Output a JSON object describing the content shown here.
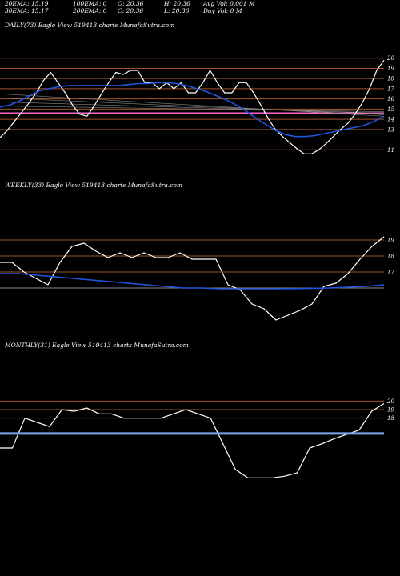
{
  "header": {
    "ema20": "20EMA: 15.19",
    "ema100": "100EMA: 0",
    "open": "O: 20.36",
    "high": "H: 20.36",
    "avgvol": "Avg Vol: 0.001 M",
    "ema30": "30EMA: 15.17",
    "ema200": "200EMA: 0",
    "close": "C: 20.36",
    "low": "L: 20.36",
    "dayvol": "Day Vol: 0  M"
  },
  "colors": {
    "price": "#ffffff",
    "ema": "#2255dd",
    "orange": "#a0522d",
    "pink": "#ff66cc",
    "gray": "#888888",
    "flat": "#7aa6e6"
  },
  "chart_data": [
    {
      "title": "DAILY(73) Eagle  View  519413 charts MunafaSutra.com",
      "type": "line",
      "ylim": [
        10,
        21
      ],
      "y_ticks": [
        20,
        19,
        18,
        17,
        16,
        15,
        14,
        13,
        11
      ],
      "series": [
        {
          "values": [
            12.2,
            12.9,
            13.8,
            14.7,
            15.6,
            16.6,
            17.8,
            18.6,
            17.6,
            16.6,
            15.4,
            14.5,
            14.3,
            15.3,
            16.5,
            17.6,
            18.6,
            18.4,
            18.8,
            18.8,
            17.6,
            17.6,
            17.0,
            17.6,
            17.0,
            17.6,
            16.6,
            16.6,
            17.6,
            18.8,
            17.6,
            16.6,
            16.6,
            17.6,
            17.6,
            16.6,
            15.4,
            14.1,
            13.0,
            12.3,
            11.7,
            11.1,
            10.6,
            10.6,
            11.0,
            11.6,
            12.3,
            13.0,
            13.6,
            14.5,
            15.6,
            17.0,
            18.8,
            19.8
          ]
        },
        {
          "values": [
            15.2,
            15.4,
            15.8,
            16.3,
            16.8,
            17.0,
            17.2,
            17.3,
            17.3,
            17.3,
            17.3,
            17.3,
            17.3,
            17.4,
            17.5,
            17.5,
            17.6,
            17.6,
            17.5,
            17.3,
            17.0,
            16.7,
            16.3,
            15.9,
            15.4,
            14.8,
            14.1,
            13.5,
            12.9,
            12.5,
            12.3,
            12.3,
            12.4,
            12.6,
            12.8,
            13.0,
            13.2,
            13.4,
            13.8,
            14.3
          ]
        }
      ]
    },
    {
      "title": "WEEKLY(33) Eagle  View  519413 charts MunafaSutra.com",
      "type": "line",
      "ylim": [
        14,
        20
      ],
      "y_ticks": [
        19,
        18,
        17
      ],
      "series": [
        {
          "values": [
            17.6,
            17.6,
            17.0,
            16.6,
            16.2,
            17.6,
            18.6,
            18.8,
            18.3,
            17.9,
            18.2,
            17.9,
            18.2,
            17.9,
            17.9,
            18.2,
            17.8,
            17.8,
            17.8,
            16.2,
            15.9,
            15.0,
            14.7,
            14.0,
            14.3,
            14.6,
            15.0,
            16.1,
            16.3,
            16.9,
            17.8,
            18.6,
            19.2
          ]
        },
        {
          "values": [
            16.9,
            16.9,
            16.8,
            16.7,
            16.6,
            16.5,
            16.4,
            16.3,
            16.2,
            16.1,
            16.0,
            16.0,
            15.95,
            15.95,
            15.95,
            15.95,
            15.96,
            15.98,
            16.0,
            16.05,
            16.1,
            16.2
          ]
        }
      ]
    },
    {
      "title": "MONTHLY(31) Eagle  View  519413 charts MunafaSutra.com",
      "type": "line",
      "ylim": [
        7,
        22
      ],
      "y_ticks": [
        20,
        19,
        18
      ],
      "series": [
        {
          "values": [
            14.5,
            14.5,
            18.0,
            17.5,
            17.0,
            19.0,
            18.8,
            19.2,
            18.5,
            18.5,
            18.0,
            18.0,
            18.0,
            18.0,
            18.5,
            19.0,
            18.5,
            18.0,
            15.0,
            12.0,
            11.0,
            11.0,
            11.0,
            11.2,
            11.6,
            14.5,
            15.0,
            15.6,
            16.1,
            16.6,
            18.8,
            19.7
          ]
        },
        {
          "values": [
            16.2,
            16.2
          ]
        }
      ]
    }
  ]
}
